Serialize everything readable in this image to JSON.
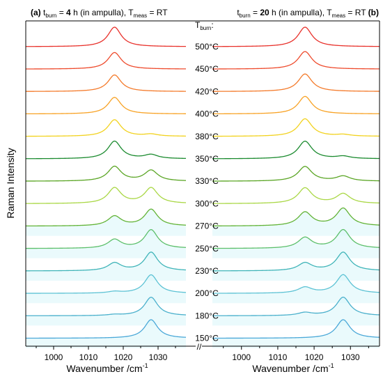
{
  "chart_data": {
    "type": "line",
    "ylabel": "Raman Intensity",
    "xlabel": "Wavenumber /cm⁻¹",
    "xlim": [
      992,
      1038
    ],
    "x_ticks": [
      1000,
      1010,
      1020,
      1030
    ],
    "peak_positions_cm-1": [
      1017.5,
      1028
    ],
    "temperature_header": "T",
    "temperature_header_sub": "burn",
    "temperature_header_suffix": ":",
    "axis_break_symbol": "//",
    "panels": [
      {
        "label": "(a)",
        "title_parts": [
          {
            "text": "(a)",
            "style": "bold"
          },
          {
            "text": " t",
            "style": "normal"
          },
          {
            "text": "burn",
            "style": "sub"
          },
          {
            "text": " = ",
            "style": "normal"
          },
          {
            "text": "4",
            "style": "bold"
          },
          {
            "text": " h (in ampulla), T",
            "style": "normal"
          },
          {
            "text": "meas",
            "style": "sub"
          },
          {
            "text": " = RT",
            "style": "normal"
          }
        ]
      },
      {
        "label": "(b)",
        "title_parts": [
          {
            "text": "t",
            "style": "normal"
          },
          {
            "text": "burn",
            "style": "sub"
          },
          {
            "text": " = ",
            "style": "normal"
          },
          {
            "text": "20",
            "style": "bold"
          },
          {
            "text": " h (in ampulla), T",
            "style": "normal"
          },
          {
            "text": "meas",
            "style": "sub"
          },
          {
            "text": " = RT ",
            "style": "normal"
          },
          {
            "text": "(b)",
            "style": "bold"
          }
        ]
      }
    ],
    "series": [
      {
        "temperature": "500°C",
        "color": "#e8302a",
        "a": {
          "p1": 1.0,
          "p2": 0.0
        },
        "b": {
          "p1": 1.0,
          "p2": 0.0
        }
      },
      {
        "temperature": "450°C",
        "color": "#ee4a2c",
        "a": {
          "p1": 0.85,
          "p2": 0.0
        },
        "b": {
          "p1": 0.9,
          "p2": 0.0
        }
      },
      {
        "temperature": "420°C",
        "color": "#f47a2a",
        "a": {
          "p1": 0.85,
          "p2": 0.0
        },
        "b": {
          "p1": 0.9,
          "p2": 0.0
        }
      },
      {
        "temperature": "400°C",
        "color": "#f8a224",
        "a": {
          "p1": 0.85,
          "p2": 0.0
        },
        "b": {
          "p1": 0.9,
          "p2": 0.0
        }
      },
      {
        "temperature": "380°C",
        "color": "#f2d21e",
        "a": {
          "p1": 0.85,
          "p2": 0.1
        },
        "b": {
          "p1": 0.9,
          "p2": 0.08
        }
      },
      {
        "temperature": "350°C",
        "color": "#1a8a2e",
        "a": {
          "p1": 0.9,
          "p2": 0.2
        },
        "b": {
          "p1": 0.9,
          "p2": 0.12
        }
      },
      {
        "temperature": "330°C",
        "color": "#5aa524",
        "a": {
          "p1": 0.75,
          "p2": 0.55
        },
        "b": {
          "p1": 0.75,
          "p2": 0.25
        }
      },
      {
        "temperature": "300°C",
        "color": "#a9d744",
        "a": {
          "p1": 0.8,
          "p2": 0.8
        },
        "b": {
          "p1": 0.8,
          "p2": 0.5
        }
      },
      {
        "temperature": "270°C",
        "color": "#62b336",
        "a": {
          "p1": 0.5,
          "p2": 0.85
        },
        "b": {
          "p1": 0.7,
          "p2": 0.9
        }
      },
      {
        "temperature": "250°C",
        "color": "#5cbf6a",
        "a": {
          "p1": 0.45,
          "p2": 0.95
        },
        "b": {
          "p1": 0.55,
          "p2": 0.95
        }
      },
      {
        "temperature": "230°C",
        "color": "#3fb4b8",
        "a": {
          "p1": 0.4,
          "p2": 0.95
        },
        "b": {
          "p1": 0.4,
          "p2": 0.95
        }
      },
      {
        "temperature": "200°C",
        "color": "#5cc2d4",
        "a": {
          "p1": 0.08,
          "p2": 0.95
        },
        "b": {
          "p1": 0.3,
          "p2": 0.95
        }
      },
      {
        "temperature": "180°C",
        "color": "#4ab0cc",
        "a": {
          "p1": 0.05,
          "p2": 0.95
        },
        "b": {
          "p1": 0.15,
          "p2": 0.95
        }
      },
      {
        "temperature": "150°C",
        "color": "#4aa8d8",
        "a": {
          "p1": 0.0,
          "p2": 0.95
        },
        "b": {
          "p1": 0.0,
          "p2": 0.95
        }
      }
    ]
  }
}
